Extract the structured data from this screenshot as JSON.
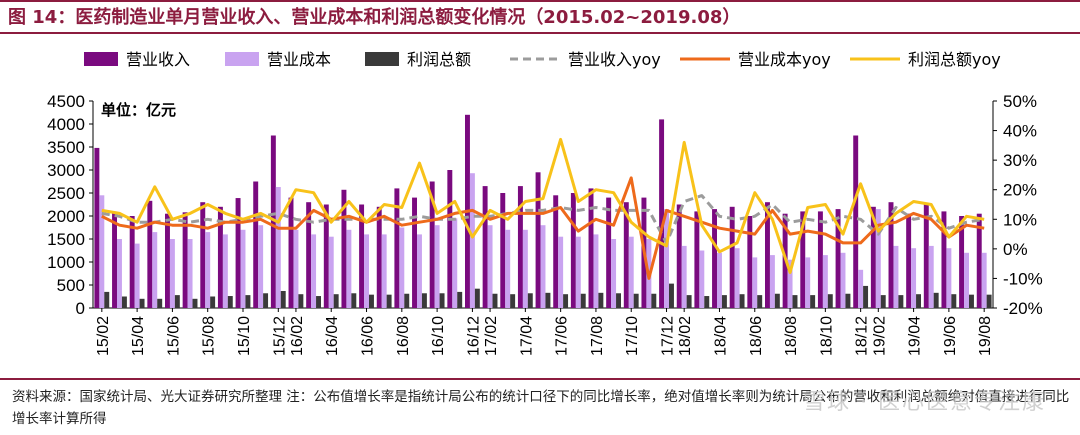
{
  "title": "图 14：医药制造业单月营业收入、营业成本和利润总额变化情况（2015.02~2019.08）",
  "source": "资料来源：国家统计局、光大证券研究所整理 注：公布值增长率是指统计局公布的统计口径下的同比增长率，绝对值增长率则为统计局公布的营收和利润总额绝对值直接进行同比增长率计算所得",
  "watermark": "雪球 · 医心医意专注康",
  "chart_data": {
    "type": "bar+line",
    "unit_label": "单位：亿元",
    "left_axis": {
      "ylim": [
        0,
        4500
      ],
      "ticks": [
        0,
        500,
        1000,
        1500,
        2000,
        2500,
        3000,
        3500,
        4000,
        4500
      ]
    },
    "right_axis": {
      "ylim": [
        -0.2,
        0.5
      ],
      "ticks": [
        "-20%",
        "-10%",
        "0%",
        "10%",
        "20%",
        "30%",
        "40%",
        "50%"
      ]
    },
    "x_tick_labels": [
      "15/02",
      "15/04",
      "15/06",
      "15/08",
      "15/10",
      "15/12",
      "16/02",
      "16/04",
      "16/06",
      "16/08",
      "16/10",
      "16/12",
      "17/02",
      "17/04",
      "17/06",
      "17/08",
      "17/10",
      "17/12",
      "18/02",
      "18/04",
      "18/06",
      "18/08",
      "18/10",
      "18/12",
      "19/02",
      "19/04",
      "19/06",
      "19/08"
    ],
    "legend_position": "top",
    "categories": [
      "15/02",
      "15/03",
      "15/04",
      "15/05",
      "15/06",
      "15/07",
      "15/08",
      "15/09",
      "15/10",
      "15/11",
      "15/12",
      "16/02",
      "16/03",
      "16/04",
      "16/05",
      "16/06",
      "16/07",
      "16/08",
      "16/09",
      "16/10",
      "16/11",
      "16/12",
      "17/02",
      "17/03",
      "17/04",
      "17/05",
      "17/06",
      "17/07",
      "17/08",
      "17/09",
      "17/10",
      "17/11",
      "17/12",
      "18/02",
      "18/03",
      "18/04",
      "18/05",
      "18/06",
      "18/07",
      "18/08",
      "18/09",
      "18/10",
      "18/11",
      "18/12",
      "19/02",
      "19/03",
      "19/04",
      "19/05",
      "19/06",
      "19/07",
      "19/08"
    ],
    "series": [
      {
        "name": "营业收入",
        "kind": "bar",
        "color": "#7a0a7f",
        "axis": "left",
        "values": [
          3480,
          2080,
          2000,
          2330,
          2050,
          2080,
          2300,
          2200,
          2390,
          2750,
          3750,
          2400,
          2300,
          2250,
          2570,
          2250,
          2200,
          2600,
          2400,
          2750,
          3000,
          4200,
          2650,
          2500,
          2650,
          2950,
          2450,
          2500,
          2600,
          2400,
          2300,
          2400,
          4100,
          2250,
          2100,
          2150,
          2200,
          2000,
          2300,
          2050,
          2100,
          2100,
          2150,
          3750,
          2200,
          2300,
          2050,
          2250,
          2100,
          2000,
          2050
        ]
      },
      {
        "name": "营业成本",
        "kind": "bar",
        "color": "#c9a3f0",
        "axis": "left",
        "values": [
          2450,
          1500,
          1400,
          1650,
          1500,
          1500,
          1650,
          1600,
          1700,
          1800,
          2630,
          1700,
          1600,
          1550,
          1700,
          1600,
          1600,
          1750,
          1600,
          1800,
          1950,
          2930,
          1800,
          1700,
          1700,
          1800,
          1550,
          1550,
          1600,
          1500,
          1550,
          1500,
          2150,
          1350,
          1250,
          1200,
          1300,
          1100,
          1150,
          1050,
          1100,
          1150,
          1200,
          830,
          2150,
          1350,
          1300,
          1350,
          1300,
          1200,
          1200
        ]
      },
      {
        "name": "利润总额",
        "kind": "bar",
        "color": "#3a3a3a",
        "axis": "left",
        "values": [
          350,
          250,
          200,
          200,
          280,
          200,
          250,
          260,
          280,
          320,
          370,
          300,
          260,
          300,
          320,
          290,
          290,
          310,
          320,
          320,
          350,
          420,
          310,
          300,
          320,
          330,
          300,
          310,
          330,
          320,
          310,
          310,
          530,
          280,
          260,
          280,
          300,
          280,
          310,
          280,
          280,
          300,
          310,
          480,
          280,
          280,
          300,
          330,
          300,
          290,
          290
        ]
      },
      {
        "name": "营业收入yoy",
        "kind": "line",
        "color": "#9c9c9c",
        "dash": true,
        "axis": "right",
        "values": [
          0.12,
          0.11,
          0.09,
          0.09,
          0.1,
          0.09,
          0.1,
          0.09,
          0.1,
          0.11,
          0.12,
          0.1,
          0.09,
          0.1,
          0.1,
          0.1,
          0.1,
          0.1,
          0.11,
          0.1,
          0.1,
          0.11,
          0.11,
          0.12,
          0.13,
          0.13,
          0.14,
          0.13,
          0.14,
          0.13,
          0.13,
          0.13,
          0.02,
          0.16,
          0.18,
          0.11,
          0.1,
          0.11,
          0.15,
          0.09,
          0.1,
          0.09,
          0.11,
          0.1,
          0.05,
          0.14,
          0.1,
          0.11,
          0.07,
          0.09,
          0.1
        ]
      },
      {
        "name": "营业成本yoy",
        "kind": "line",
        "color": "#ee6a1b",
        "dash": false,
        "axis": "right",
        "values": [
          0.11,
          0.08,
          0.07,
          0.09,
          0.08,
          0.08,
          0.07,
          0.09,
          0.09,
          0.1,
          0.07,
          0.07,
          0.13,
          0.1,
          0.11,
          0.09,
          0.11,
          0.08,
          0.09,
          0.1,
          0.12,
          0.13,
          0.1,
          0.12,
          0.12,
          0.12,
          0.14,
          0.06,
          0.1,
          0.08,
          0.24,
          -0.1,
          0.13,
          0.11,
          0.09,
          0.07,
          0.06,
          0.05,
          0.13,
          0.05,
          0.06,
          0.05,
          0.02,
          0.02,
          0.08,
          0.09,
          0.12,
          0.1,
          0.04,
          0.08,
          0.07
        ]
      },
      {
        "name": "利润总额yoy",
        "kind": "line",
        "color": "#f8c21a",
        "dash": false,
        "axis": "right",
        "values": [
          0.13,
          0.12,
          0.09,
          0.21,
          0.1,
          0.12,
          0.15,
          0.12,
          0.1,
          0.12,
          0.09,
          0.2,
          0.19,
          0.09,
          0.16,
          0.09,
          0.15,
          0.14,
          0.29,
          0.12,
          0.16,
          0.04,
          0.13,
          0.1,
          0.16,
          0.17,
          0.37,
          0.16,
          0.2,
          0.19,
          0.09,
          0.04,
          0.01,
          0.36,
          0.08,
          -0.01,
          0.02,
          0.19,
          0.1,
          -0.08,
          0.14,
          0.15,
          0.05,
          0.22,
          0.06,
          0.12,
          0.16,
          0.15,
          0.04,
          0.11,
          0.1
        ]
      }
    ]
  }
}
